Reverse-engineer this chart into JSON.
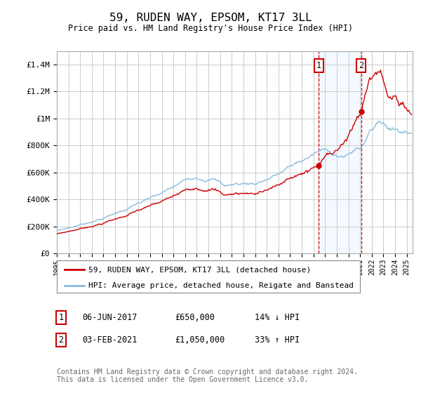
{
  "title": "59, RUDEN WAY, EPSOM, KT17 3LL",
  "subtitle": "Price paid vs. HM Land Registry's House Price Index (HPI)",
  "ylabel_ticks": [
    "£0",
    "£200K",
    "£400K",
    "£600K",
    "£800K",
    "£1M",
    "£1.2M",
    "£1.4M"
  ],
  "ylim": [
    0,
    1500000
  ],
  "xlim_start": 1995.0,
  "xlim_end": 2025.5,
  "purchase1_date": 2017.44,
  "purchase1_price": 650000,
  "purchase2_date": 2021.09,
  "purchase2_price": 1050000,
  "transaction1_label": "06-JUN-2017",
  "transaction1_amount": "£650,000",
  "transaction1_hpi": "14% ↓ HPI",
  "transaction2_label": "03-FEB-2021",
  "transaction2_amount": "£1,050,000",
  "transaction2_hpi": "33% ↑ HPI",
  "legend_line1": "59, RUDEN WAY, EPSOM, KT17 3LL (detached house)",
  "legend_line2": "HPI: Average price, detached house, Reigate and Banstead",
  "footer": "Contains HM Land Registry data © Crown copyright and database right 2024.\nThis data is licensed under the Open Government Licence v3.0.",
  "red_color": "#cc0000",
  "blue_color": "#88bbdd",
  "bg_color": "#ffffff",
  "grid_color": "#cccccc",
  "highlight_color": "#ddeeff"
}
